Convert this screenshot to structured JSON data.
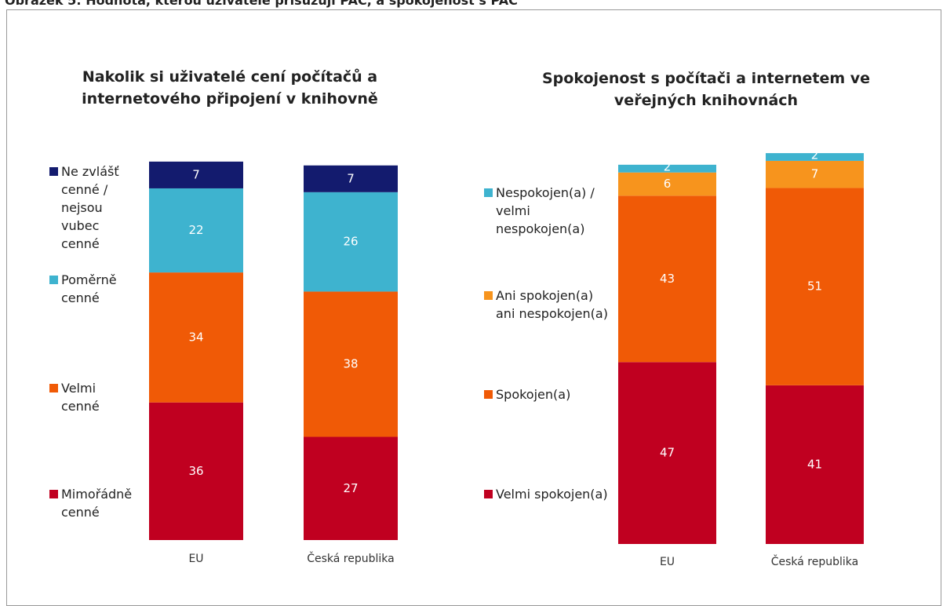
{
  "title": "Obrázek 5: Hodnota, kterou uživatelé přisuzují PAC, a spokojenost s PAC",
  "chart_data": [
    {
      "type": "bar",
      "stacked": true,
      "title": "Nakolik si uživatelé cení počítačů a internetového připojení v knihovně",
      "categories": [
        "EU",
        "Česká republika"
      ],
      "series": [
        {
          "name": "Mimořádně cenné",
          "color": "#c00020",
          "values": [
            36,
            27
          ]
        },
        {
          "name": "Velmi cenné",
          "color": "#f05a06",
          "values": [
            34,
            38
          ]
        },
        {
          "name": "Poměrně cenné",
          "color": "#3eb3cf",
          "values": [
            22,
            26
          ]
        },
        {
          "name": "Ne zvlášť cenné / nejsou vubec cenné",
          "color": "#131b6e",
          "values": [
            7,
            7
          ]
        }
      ]
    },
    {
      "type": "bar",
      "stacked": true,
      "title": "Spokojenost s počítači a internetem ve veřejných knihovnách",
      "categories": [
        "EU",
        "Česká republika"
      ],
      "series": [
        {
          "name": "Velmi spokojen(a)",
          "color": "#c00020",
          "values": [
            47,
            41
          ]
        },
        {
          "name": "Spokojen(a)",
          "color": "#f05a06",
          "values": [
            43,
            51
          ]
        },
        {
          "name": "Ani spokojen(a) ani nespokojen(a)",
          "color": "#f7941d",
          "values": [
            6,
            7
          ]
        },
        {
          "name": "Nespokojen(a) / velmi nespokojen(a)",
          "color": "#3eb3cf",
          "values": [
            2,
            2
          ]
        }
      ]
    }
  ]
}
